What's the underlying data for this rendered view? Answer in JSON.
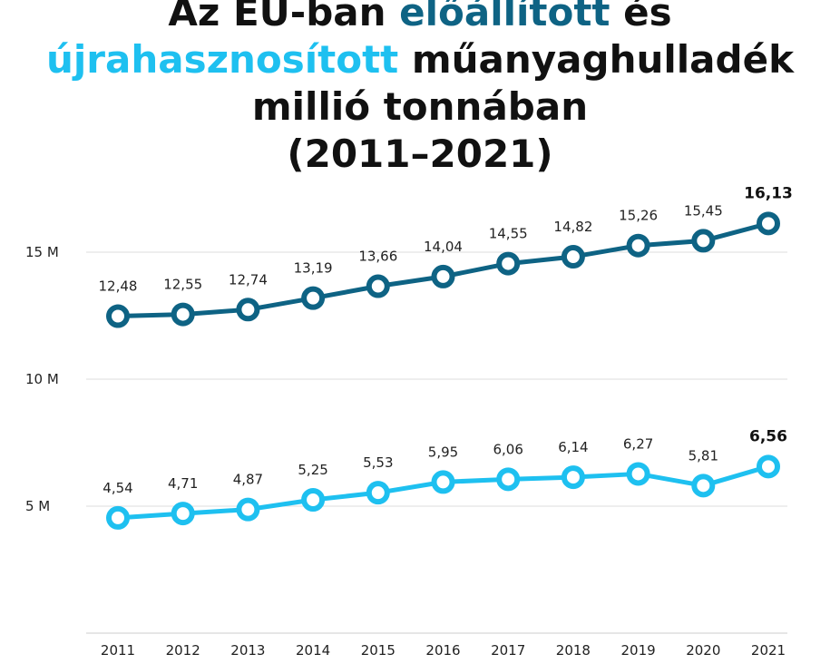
{
  "title": {
    "part1": "Az EU-ban ",
    "highlight1": "előállított",
    "part2": " és",
    "highlight2": "újrahasznosított",
    "part3": " műanyaghulladék",
    "line3": "millió tonnában",
    "line4": "(2011–2021)"
  },
  "colors": {
    "produced": "#0e6384",
    "recycled": "#1ec0f0",
    "text": "#111111",
    "grid": "#dddddd"
  },
  "chart_data": {
    "type": "line",
    "title": "Az EU-ban előállított és újrahasznosított műanyaghulladék millió tonnában (2011–2021)",
    "xlabel": "",
    "ylabel": "",
    "x": [
      "2011",
      "2012",
      "2013",
      "2014",
      "2015",
      "2016",
      "2017",
      "2018",
      "2019",
      "2020",
      "2021"
    ],
    "ylim": [
      0,
      17
    ],
    "yticks": [
      {
        "value": 5,
        "label": "5 M"
      },
      {
        "value": 10,
        "label": "10 M"
      },
      {
        "value": 15,
        "label": "15 M"
      }
    ],
    "series": [
      {
        "name": "előállított",
        "values": [
          12.48,
          12.55,
          12.74,
          13.19,
          13.66,
          14.04,
          14.55,
          14.82,
          15.26,
          15.45,
          16.13
        ],
        "labels": [
          "12,48",
          "12,55",
          "12,74",
          "13,19",
          "13,66",
          "14,04",
          "14,55",
          "14,82",
          "15,26",
          "15,45",
          "16,13"
        ]
      },
      {
        "name": "újrahasznosított",
        "values": [
          4.54,
          4.71,
          4.87,
          5.25,
          5.53,
          5.95,
          6.06,
          6.14,
          6.27,
          5.81,
          6.56
        ],
        "labels": [
          "4,54",
          "4,71",
          "4,87",
          "5,25",
          "5,53",
          "5,95",
          "6,06",
          "6,14",
          "6,27",
          "5,81",
          "6,56"
        ]
      }
    ]
  }
}
